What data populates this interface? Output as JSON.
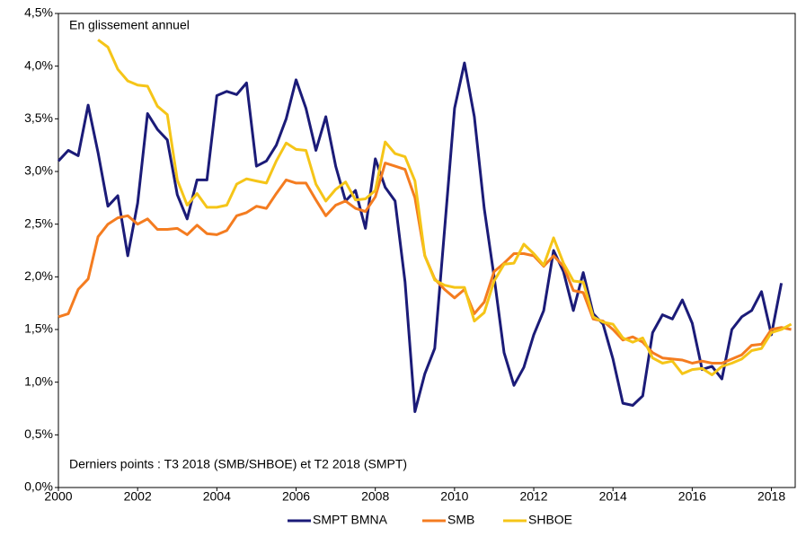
{
  "chart_data": {
    "type": "line",
    "annotations": [
      "En glissement annuel",
      "Derniers points : T3 2018 (SMB/SHBOE) et T2 2018 (SMPT)"
    ],
    "x": [
      2000,
      2000.25,
      2000.5,
      2000.75,
      2001,
      2001.25,
      2001.5,
      2001.75,
      2002,
      2002.25,
      2002.5,
      2002.75,
      2003,
      2003.25,
      2003.5,
      2003.75,
      2004,
      2004.25,
      2004.5,
      2004.75,
      2005,
      2005.25,
      2005.5,
      2005.75,
      2006,
      2006.25,
      2006.5,
      2006.75,
      2007,
      2007.25,
      2007.5,
      2007.75,
      2008,
      2008.25,
      2008.5,
      2008.75,
      2009,
      2009.25,
      2009.5,
      2009.75,
      2010,
      2010.25,
      2010.5,
      2010.75,
      2011,
      2011.25,
      2011.5,
      2011.75,
      2012,
      2012.25,
      2012.5,
      2012.75,
      2013,
      2013.25,
      2013.5,
      2013.75,
      2014,
      2014.25,
      2014.5,
      2014.75,
      2015,
      2015.25,
      2015.5,
      2015.75,
      2016,
      2016.25,
      2016.5,
      2016.75,
      2017,
      2017.25,
      2017.5,
      2017.75,
      2018,
      2018.25,
      2018.5
    ],
    "series": [
      {
        "name": "SMPT BMNA",
        "color": "#1b1b78",
        "values": [
          3.1,
          3.2,
          3.15,
          3.63,
          3.18,
          2.67,
          2.77,
          2.2,
          2.7,
          3.55,
          3.4,
          3.3,
          2.78,
          2.55,
          2.92,
          2.92,
          3.72,
          3.76,
          3.73,
          3.84,
          3.05,
          3.1,
          3.25,
          3.5,
          3.87,
          3.6,
          3.2,
          3.52,
          3.05,
          2.72,
          2.82,
          2.46,
          3.12,
          2.85,
          2.72,
          1.95,
          0.72,
          1.08,
          1.32,
          2.45,
          3.6,
          4.03,
          3.52,
          2.65,
          2.0,
          1.28,
          0.97,
          1.14,
          1.45,
          1.68,
          2.25,
          2.05,
          1.68,
          2.04,
          1.65,
          1.55,
          1.22,
          0.8,
          0.78,
          0.87,
          1.47,
          1.64,
          1.6,
          1.78,
          1.56,
          1.12,
          1.15,
          1.03,
          1.5,
          1.62,
          1.68,
          1.86,
          1.45,
          1.94,
          null
        ]
      },
      {
        "name": "SMB",
        "color": "#f47c20",
        "values": [
          1.62,
          1.65,
          1.88,
          1.98,
          2.38,
          2.5,
          2.56,
          2.58,
          2.5,
          2.55,
          2.45,
          2.45,
          2.46,
          2.4,
          2.49,
          2.41,
          2.4,
          2.44,
          2.58,
          2.61,
          2.67,
          2.65,
          2.79,
          2.92,
          2.89,
          2.89,
          2.73,
          2.58,
          2.68,
          2.72,
          2.65,
          2.62,
          2.76,
          3.08,
          3.05,
          3.02,
          2.75,
          2.2,
          1.98,
          1.88,
          1.8,
          1.88,
          1.65,
          1.76,
          2.05,
          2.13,
          2.22,
          2.22,
          2.2,
          2.1,
          2.2,
          2.1,
          1.87,
          1.85,
          1.6,
          1.58,
          1.5,
          1.4,
          1.43,
          1.38,
          1.28,
          1.23,
          1.22,
          1.21,
          1.18,
          1.2,
          1.18,
          1.18,
          1.22,
          1.26,
          1.35,
          1.36,
          1.5,
          1.52,
          1.5
        ]
      },
      {
        "name": "SHBOE",
        "color": "#f5c518",
        "values": [
          null,
          null,
          null,
          null,
          4.25,
          4.18,
          3.97,
          3.86,
          3.82,
          3.81,
          3.62,
          3.54,
          2.92,
          2.68,
          2.79,
          2.66,
          2.66,
          2.68,
          2.88,
          2.93,
          2.91,
          2.89,
          3.1,
          3.27,
          3.21,
          3.2,
          2.88,
          2.72,
          2.83,
          2.9,
          2.73,
          2.74,
          2.82,
          3.28,
          3.17,
          3.14,
          2.91,
          2.2,
          1.97,
          1.92,
          1.9,
          1.9,
          1.58,
          1.66,
          1.96,
          2.12,
          2.13,
          2.31,
          2.22,
          2.11,
          2.37,
          2.13,
          1.96,
          1.95,
          1.62,
          1.57,
          1.55,
          1.42,
          1.38,
          1.42,
          1.23,
          1.18,
          1.2,
          1.08,
          1.12,
          1.13,
          1.07,
          1.15,
          1.18,
          1.22,
          1.3,
          1.32,
          1.47,
          1.5,
          1.55
        ]
      }
    ],
    "xlim": [
      2000,
      2018.6
    ],
    "xticks": [
      2000,
      2002,
      2004,
      2006,
      2008,
      2010,
      2012,
      2014,
      2016,
      2018
    ],
    "ylim": [
      0,
      4.5
    ],
    "yticks": [
      {
        "value": 0,
        "label": "0,0%"
      },
      {
        "value": 0.5,
        "label": "0,5%"
      },
      {
        "value": 1,
        "label": "1,0%"
      },
      {
        "value": 1.5,
        "label": "1,5%"
      },
      {
        "value": 2,
        "label": "2,0%"
      },
      {
        "value": 2.5,
        "label": "2,5%"
      },
      {
        "value": 3,
        "label": "3,0%"
      },
      {
        "value": 3.5,
        "label": "3,5%"
      },
      {
        "value": 4,
        "label": "4,0%"
      },
      {
        "value": 4.5,
        "label": "4,5%"
      }
    ],
    "grid": false,
    "legend": "bottom"
  }
}
